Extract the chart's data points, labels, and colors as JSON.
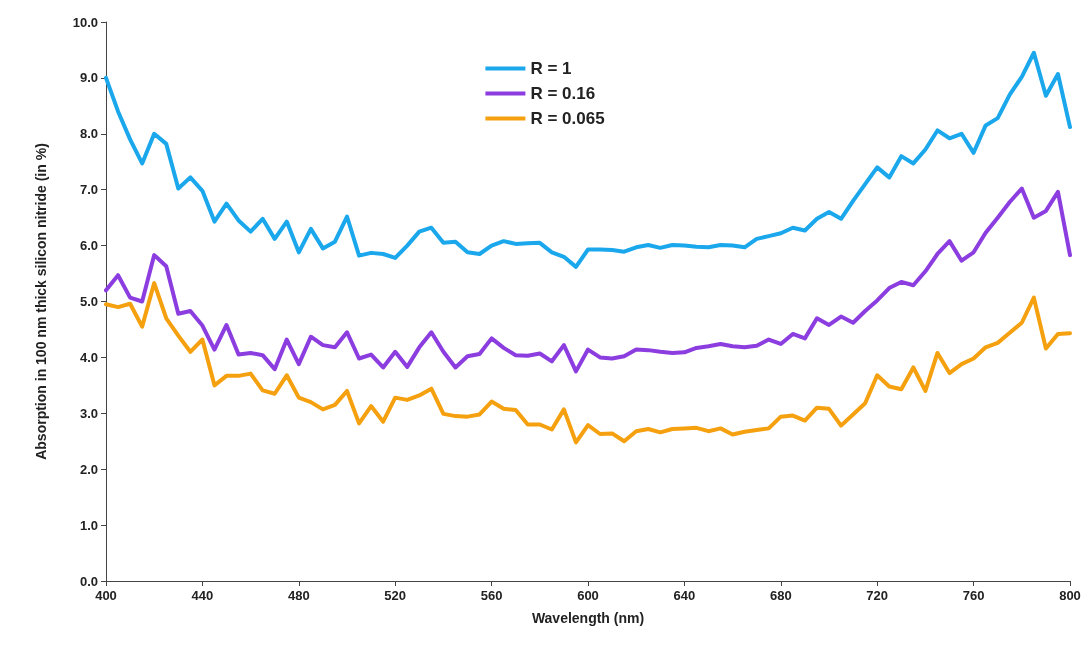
{
  "chart_data": {
    "type": "line",
    "xlabel": "Wavelength (nm)",
    "ylabel": "Absorption in 100 nm thick silicon nitride (in %)",
    "x": [
      400,
      405,
      410,
      415,
      420,
      425,
      430,
      435,
      440,
      445,
      450,
      455,
      460,
      465,
      470,
      475,
      480,
      485,
      490,
      495,
      500,
      505,
      510,
      515,
      520,
      525,
      530,
      535,
      540,
      545,
      550,
      555,
      560,
      565,
      570,
      575,
      580,
      585,
      590,
      595,
      600,
      605,
      610,
      615,
      620,
      625,
      630,
      635,
      640,
      645,
      650,
      655,
      660,
      665,
      670,
      675,
      680,
      685,
      690,
      695,
      700,
      705,
      710,
      715,
      720,
      725,
      730,
      735,
      740,
      745,
      750,
      755,
      760,
      765,
      770,
      775,
      780,
      785,
      790,
      795,
      800
    ],
    "series": [
      {
        "name": "R = 1",
        "color": "#1aa7ec",
        "values": [
          9.0,
          8.4,
          7.9,
          7.47,
          8.0,
          7.82,
          7.02,
          7.22,
          6.98,
          6.43,
          6.75,
          6.45,
          6.25,
          6.48,
          6.12,
          6.43,
          5.88,
          6.3,
          5.95,
          6.07,
          6.52,
          5.82,
          5.87,
          5.85,
          5.78,
          6.0,
          6.25,
          6.32,
          6.05,
          6.07,
          5.88,
          5.85,
          6.0,
          6.08,
          6.03,
          6.04,
          6.05,
          5.88,
          5.8,
          5.62,
          5.93,
          5.93,
          5.92,
          5.89,
          5.97,
          6.01,
          5.96,
          6.01,
          6.0,
          5.98,
          5.97,
          6.01,
          6.0,
          5.97,
          6.12,
          6.17,
          6.22,
          6.32,
          6.27,
          6.48,
          6.6,
          6.48,
          6.8,
          7.1,
          7.4,
          7.22,
          7.6,
          7.47,
          7.72,
          8.06,
          7.92,
          8.0,
          7.66,
          8.15,
          8.28,
          8.7,
          9.02,
          9.45,
          8.68,
          9.07,
          8.12
        ]
      },
      {
        "name": "R = 0.16",
        "color": "#8c3de0",
        "values": [
          5.2,
          5.47,
          5.07,
          5.0,
          5.83,
          5.63,
          4.78,
          4.83,
          4.57,
          4.14,
          4.58,
          4.05,
          4.08,
          4.04,
          3.79,
          4.32,
          3.88,
          4.37,
          4.22,
          4.18,
          4.45,
          3.98,
          4.05,
          3.82,
          4.1,
          3.83,
          4.18,
          4.45,
          4.1,
          3.82,
          4.02,
          4.06,
          4.34,
          4.17,
          4.04,
          4.03,
          4.07,
          3.93,
          4.22,
          3.75,
          4.14,
          4.0,
          3.98,
          4.02,
          4.14,
          4.13,
          4.1,
          4.08,
          4.09,
          4.17,
          4.2,
          4.24,
          4.2,
          4.18,
          4.21,
          4.32,
          4.24,
          4.42,
          4.34,
          4.7,
          4.58,
          4.73,
          4.62,
          4.83,
          5.02,
          5.24,
          5.35,
          5.29,
          5.54,
          5.85,
          6.08,
          5.73,
          5.88,
          6.23,
          6.5,
          6.78,
          7.02,
          6.5,
          6.62,
          6.96,
          5.83
        ]
      },
      {
        "name": "R = 0.065",
        "color": "#f5a00f",
        "values": [
          4.95,
          4.9,
          4.96,
          4.55,
          5.33,
          4.7,
          4.39,
          4.1,
          4.32,
          3.5,
          3.67,
          3.67,
          3.71,
          3.41,
          3.35,
          3.68,
          3.28,
          3.2,
          3.07,
          3.15,
          3.4,
          2.82,
          3.13,
          2.85,
          3.28,
          3.24,
          3.32,
          3.44,
          2.99,
          2.95,
          2.94,
          2.98,
          3.21,
          3.08,
          3.06,
          2.8,
          2.8,
          2.71,
          3.07,
          2.48,
          2.79,
          2.63,
          2.64,
          2.5,
          2.68,
          2.72,
          2.66,
          2.72,
          2.73,
          2.74,
          2.68,
          2.73,
          2.62,
          2.67,
          2.7,
          2.73,
          2.94,
          2.96,
          2.87,
          3.1,
          3.08,
          2.78,
          2.98,
          3.18,
          3.68,
          3.48,
          3.43,
          3.82,
          3.4,
          4.08,
          3.72,
          3.88,
          3.98,
          4.18,
          4.26,
          4.44,
          4.62,
          5.07,
          4.16,
          4.42,
          4.43
        ]
      }
    ],
    "xlim": [
      400,
      800
    ],
    "xticks": [
      400,
      440,
      480,
      520,
      560,
      600,
      640,
      680,
      720,
      760,
      800
    ],
    "ylim": [
      0,
      10
    ],
    "yticks": [
      {
        "value": 0,
        "label": "0.0"
      },
      {
        "value": 1,
        "label": "1.0"
      },
      {
        "value": 2,
        "label": "2.0"
      },
      {
        "value": 3,
        "label": "3.0"
      },
      {
        "value": 4,
        "label": "4.0"
      },
      {
        "value": 5,
        "label": "5.0"
      },
      {
        "value": 6,
        "label": "6.0"
      },
      {
        "value": 7,
        "label": "7.0"
      },
      {
        "value": 8,
        "label": "8.0"
      },
      {
        "value": 9,
        "label": "9.0"
      },
      {
        "value": 10,
        "label": "10.0"
      }
    ],
    "grid": false,
    "legend": "top",
    "marker": "none",
    "line_style": "solid"
  }
}
